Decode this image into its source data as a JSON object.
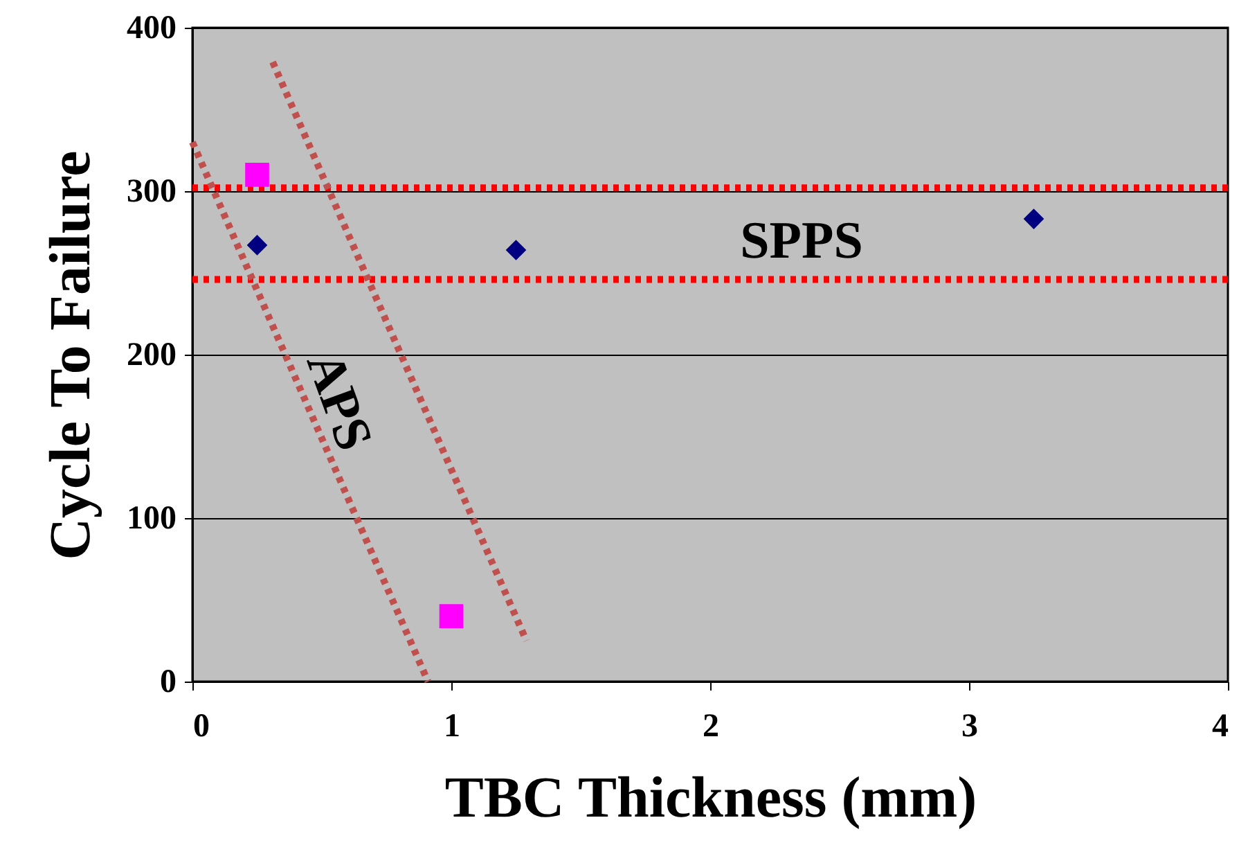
{
  "chart_data": {
    "type": "scatter",
    "xlabel": "TBC Thickness (mm)",
    "ylabel": "Cycle To Failure",
    "xlim": [
      0,
      4
    ],
    "xticks": [
      0,
      1,
      2,
      3,
      4
    ],
    "ylim": [
      0,
      400
    ],
    "yticks": [
      0,
      100,
      200,
      300,
      400
    ],
    "grid": "y",
    "series": [
      {
        "marker": "diamond",
        "color": "#000080",
        "x": [
          0.25,
          1.25,
          3.25
        ],
        "values": [
          267,
          264,
          283
        ]
      },
      {
        "marker": "square",
        "color": "#ff00ff",
        "x": [
          0.25,
          1.0
        ],
        "values": [
          310,
          40
        ]
      },
      {
        "type": "line",
        "line_style": "dotted",
        "color": "#c0504d",
        "x": [
          0,
          0.91
        ],
        "values": [
          330,
          0
        ]
      },
      {
        "type": "line",
        "line_style": "dotted",
        "color": "#c0504d",
        "x": [
          0.31,
          1.29
        ],
        "values": [
          379,
          25
        ]
      }
    ],
    "ref_lines": [
      {
        "axis": "y",
        "value": 302,
        "color": "#ff0000",
        "line_style": "dotted"
      },
      {
        "axis": "y",
        "value": 246,
        "color": "#ff0000",
        "line_style": "dotted"
      }
    ],
    "annotations": [
      "SPPS",
      "APS"
    ]
  }
}
